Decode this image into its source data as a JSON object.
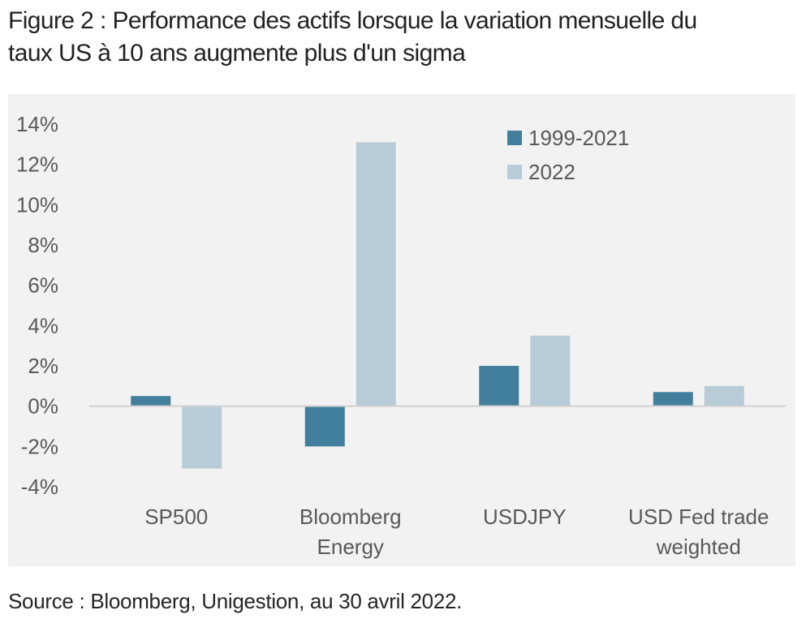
{
  "title_lines": [
    "Figure 2 : Performance des actifs lorsque la variation mensuelle du",
    "taux US à 10 ans augmente plus d'un sigma"
  ],
  "source": "Source : Bloomberg, Unigestion, au 30 avril 2022.",
  "colors": {
    "series_1": "#427f9c",
    "series_2": "#b7ccd6",
    "panel_background": "#f2f2f2",
    "axis_line": "#d0d0d0"
  },
  "chart_data": {
    "type": "bar",
    "title": "",
    "xlabel": "",
    "ylabel": "",
    "categories": [
      [
        "SP500"
      ],
      [
        "Bloomberg",
        "Energy"
      ],
      [
        "USDJPY"
      ],
      [
        "USD Fed trade",
        "weighted"
      ]
    ],
    "series": [
      {
        "name": "1999-2021",
        "values": [
          0.5,
          -2.0,
          2.0,
          0.7
        ]
      },
      {
        "name": "2022",
        "values": [
          -3.1,
          13.1,
          3.5,
          1.0
        ]
      }
    ],
    "ylim": [
      -4,
      14
    ],
    "yticks": [
      14,
      12,
      10,
      8,
      6,
      4,
      2,
      0,
      -2,
      -4
    ],
    "ytick_labels": [
      "14%",
      "12%",
      "10%",
      "8%",
      "6%",
      "4%",
      "2%",
      "0%",
      "-2%",
      "-4%"
    ],
    "grid": false,
    "legend_position": "top-right"
  }
}
